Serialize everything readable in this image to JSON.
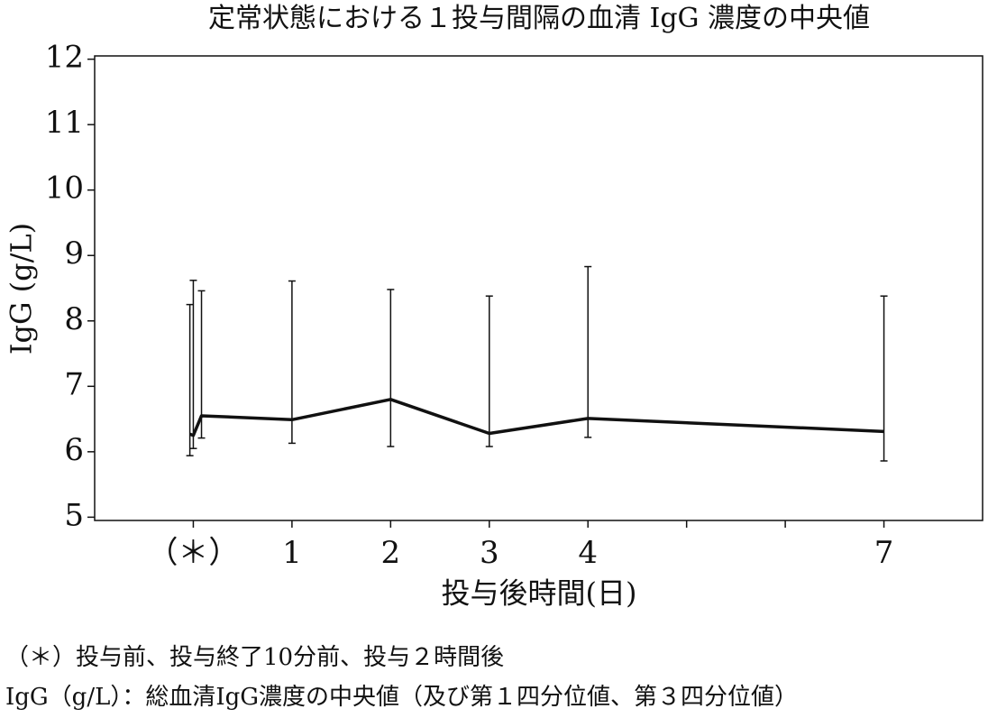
{
  "chart_data": {
    "type": "line",
    "title": "定常状態における１投与間隔の血清 IgG 濃度の中央値",
    "xlabel": "投与後時間(日)",
    "ylabel": "IgG (g/L)",
    "series": [
      {
        "name": "IgG",
        "color": "#111111",
        "x": [
          -0.035,
          0,
          0.083,
          1,
          2,
          3,
          4,
          7
        ],
        "values": [
          6.27,
          6.25,
          6.55,
          6.49,
          6.8,
          6.28,
          6.51,
          6.31
        ],
        "q1": [
          5.94,
          6.05,
          6.21,
          6.13,
          6.08,
          6.08,
          6.22,
          5.86
        ],
        "q3": [
          8.25,
          8.62,
          8.46,
          8.61,
          8.48,
          8.38,
          8.83,
          8.38
        ]
      }
    ],
    "xlim": [
      -1,
      8
    ],
    "xticks": [
      {
        "value": 0,
        "label": "（＊）"
      },
      1,
      2,
      3,
      4,
      7
    ],
    "xminorticks": [
      5,
      6
    ],
    "ylim": [
      4.95,
      12.05
    ],
    "yticks": [
      5,
      6,
      7,
      8,
      9,
      10,
      11,
      12
    ],
    "footnotes": [
      "（＊）投与前、投与終了10分前、投与２時間後",
      "IgG（g/L）：総血清IgG濃度の中央値（及び第１四分位値、第３四分位値）"
    ]
  }
}
